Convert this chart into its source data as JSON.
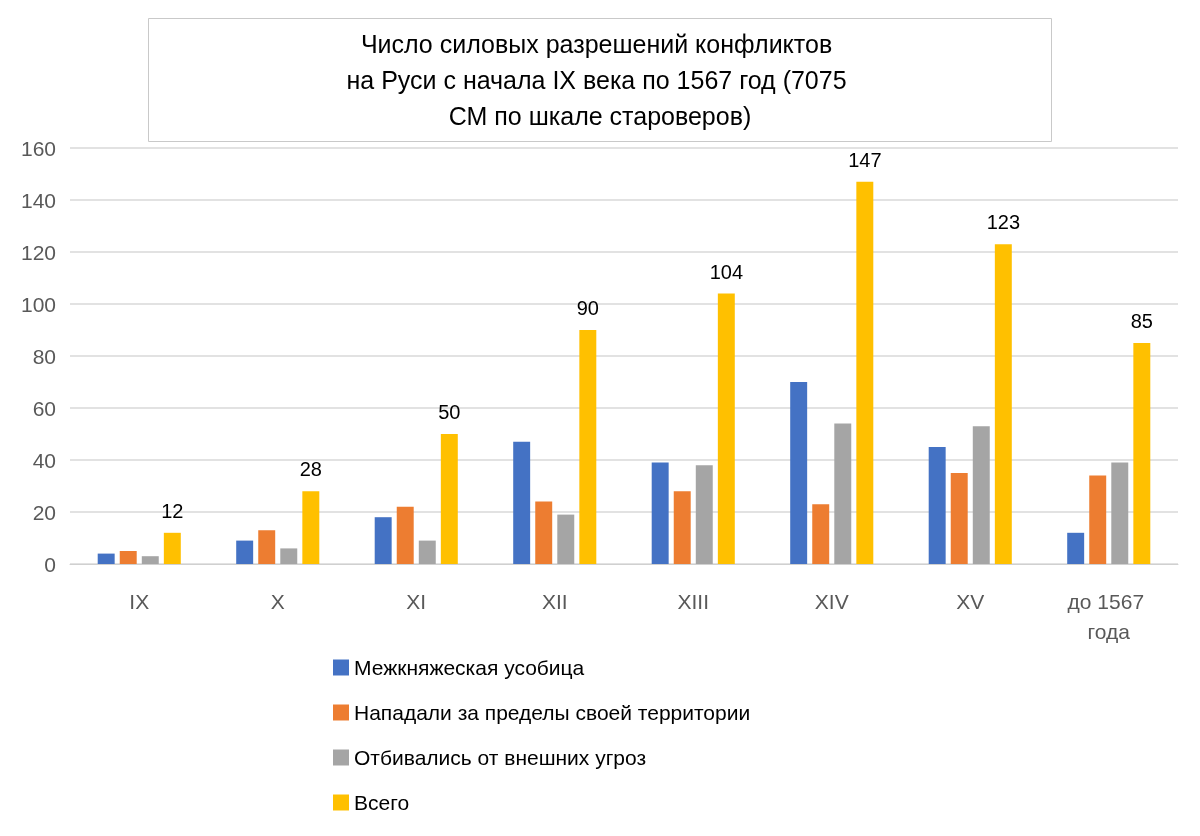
{
  "chart_data": {
    "type": "bar",
    "title": "Число силовых разрешений конфликтов на Руси с начала IX века по 1567 год (7075 СМ по шкале староверов)",
    "categories": [
      "IX",
      "X",
      "XI",
      "XII",
      "XIII",
      "XIV",
      "XV",
      "до 1567 года"
    ],
    "series": [
      {
        "name": "Межкняжеская усобица",
        "color": "#4472c4",
        "values": [
          4,
          9,
          18,
          47,
          39,
          70,
          45,
          12
        ]
      },
      {
        "name": "Нападали за пределы своей территории",
        "color": "#ed7d31",
        "values": [
          5,
          13,
          22,
          24,
          28,
          23,
          35,
          34
        ]
      },
      {
        "name": "Отбивались от внешних угроз",
        "color": "#a5a5a5",
        "values": [
          3,
          6,
          9,
          19,
          38,
          54,
          53,
          39
        ]
      },
      {
        "name": "Всего",
        "color": "#ffc000",
        "values": [
          12,
          28,
          50,
          90,
          104,
          147,
          123,
          85
        ],
        "value_labels": [
          "12",
          "28",
          "50",
          "90",
          "104",
          "147",
          "123",
          "85"
        ]
      }
    ],
    "ylim": [
      0,
      160
    ],
    "yticks": [
      0,
      20,
      40,
      60,
      80,
      100,
      120,
      140,
      160
    ],
    "grid": "y",
    "legend": "bottom"
  }
}
